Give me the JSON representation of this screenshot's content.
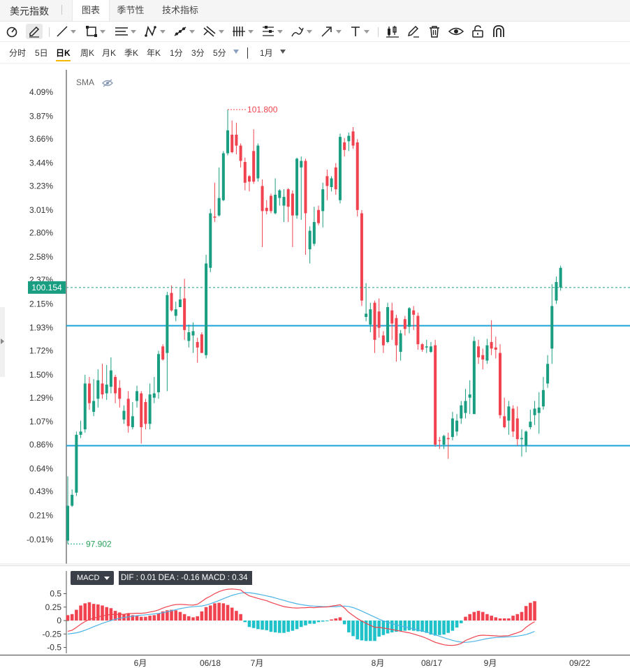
{
  "header": {
    "index_name": "美元指数",
    "tabs": [
      {
        "label": "图表",
        "active": true
      },
      {
        "label": "季节性",
        "active": false
      },
      {
        "label": "技术指标",
        "active": false
      }
    ]
  },
  "toolbar": {
    "tools": [
      "cursor-tool-icon",
      "pencil-tool-icon",
      "trend-line-icon",
      "rectangle-icon",
      "parallel-lines-icon",
      "pattern-icon",
      "channel-icon",
      "fib-icon",
      "bars-icon",
      "measure-icon",
      "brush-icon",
      "arrow-icon",
      "text-icon",
      "candle-style-icon",
      "edit-icon",
      "delete-icon",
      "eye-icon",
      "lock-icon",
      "magnet-icon"
    ]
  },
  "periods": {
    "items": [
      "分时",
      "5日",
      "日K",
      "周K",
      "月K",
      "季K",
      "年K",
      "1分",
      "3分",
      "5分"
    ],
    "active": "日K",
    "range_label": "1月"
  },
  "indicator": {
    "label": "SMA"
  },
  "price_axis": {
    "ticks": [
      "4.09%",
      "3.87%",
      "3.66%",
      "3.44%",
      "3.23%",
      "3.01%",
      "2.80%",
      "2.58%",
      "2.37%",
      "2.15%",
      "1.93%",
      "1.72%",
      "1.50%",
      "1.29%",
      "1.07%",
      "0.86%",
      "0.64%",
      "0.43%",
      "0.21%",
      "-0.01%"
    ],
    "current_price": "100.154",
    "high_label": "101.800",
    "low_label": "97.902"
  },
  "macd": {
    "label": "MACD",
    "stats": "DIF : 0.01   DEA : -0.16   MACD : 0.34",
    "y_ticks": [
      "0.5",
      "0.25",
      "0",
      "-0.25",
      "-0.5"
    ]
  },
  "time_axis": {
    "labels": [
      "6月",
      "06/18",
      "7月",
      "8月",
      "08/17",
      "9月",
      "09/22"
    ]
  },
  "colors": {
    "up": "#f0434f",
    "down": "#1a9e82",
    "support_line": "#1aa3d8",
    "price_label_bg": "#1a9e82",
    "dif": "#f0434f",
    "dea": "#4cb3e6",
    "macd_pos": "#f0434f",
    "macd_neg": "#1fc2c9"
  },
  "chart_data": {
    "type": "candlestick",
    "ylabel": "",
    "ylim_pct": [
      -0.2,
      4.2
    ],
    "horizontal_levels_pct": [
      1.95,
      0.85
    ],
    "candles": [
      [
        0.3,
        -0.02,
        0.57,
        -0.05
      ],
      [
        0.4,
        0.3,
        0.45,
        0.29
      ],
      [
        0.95,
        0.42,
        0.98,
        0.39
      ],
      [
        0.98,
        0.95,
        1.08,
        0.92
      ],
      [
        1.42,
        1.0,
        1.5,
        0.97
      ],
      [
        1.24,
        1.42,
        1.48,
        1.18
      ],
      [
        1.26,
        1.16,
        1.46,
        1.12
      ],
      [
        1.45,
        1.28,
        1.55,
        1.2
      ],
      [
        1.32,
        1.42,
        1.6,
        1.28
      ],
      [
        1.41,
        1.33,
        1.59,
        1.27
      ],
      [
        1.54,
        1.39,
        1.66,
        1.33
      ],
      [
        1.33,
        1.48,
        1.5,
        1.24
      ],
      [
        1.28,
        1.38,
        1.45,
        1.2
      ],
      [
        1.17,
        1.09,
        1.22,
        1.05
      ],
      [
        1.03,
        1.28,
        1.35,
        0.97
      ],
      [
        1.12,
        1.02,
        1.25,
        1.0
      ],
      [
        1.35,
        1.26,
        1.4,
        1.2
      ],
      [
        1.02,
        1.33,
        1.35,
        0.87
      ],
      [
        1.05,
        1.25,
        1.28,
        1.0
      ],
      [
        1.32,
        1.05,
        1.42,
        1.0
      ],
      [
        1.33,
        1.29,
        1.48,
        1.24
      ],
      [
        1.69,
        1.34,
        1.72,
        1.28
      ],
      [
        1.64,
        1.76,
        1.78,
        1.63
      ],
      [
        2.23,
        1.7,
        2.26,
        1.35
      ],
      [
        2.09,
        2.25,
        2.32,
        2.08
      ],
      [
        2.1,
        2.04,
        2.17,
        1.99
      ],
      [
        2.19,
        2.12,
        2.3,
        2.12
      ],
      [
        1.91,
        2.2,
        2.38,
        1.82
      ],
      [
        1.89,
        1.81,
        1.96,
        1.75
      ],
      [
        1.9,
        1.86,
        1.98,
        1.7
      ],
      [
        1.75,
        1.8,
        1.84,
        1.61
      ],
      [
        1.7,
        1.87,
        1.89,
        1.7
      ],
      [
        2.52,
        1.68,
        2.6,
        1.65
      ],
      [
        2.98,
        2.48,
        3.02,
        2.44
      ],
      [
        2.94,
        2.95,
        3.26,
        2.9
      ],
      [
        3.12,
        2.96,
        3.4,
        2.95
      ],
      [
        3.53,
        3.1,
        3.55,
        3.09
      ],
      [
        3.74,
        3.53,
        3.93,
        3.51
      ],
      [
        3.54,
        3.7,
        3.83,
        3.53
      ],
      [
        3.6,
        3.7,
        3.81,
        3.52
      ],
      [
        3.46,
        3.6,
        3.62,
        3.4
      ],
      [
        3.26,
        3.45,
        3.49,
        3.19
      ],
      [
        3.27,
        3.32,
        3.33,
        3.18
      ],
      [
        3.27,
        3.55,
        3.75,
        3.25
      ],
      [
        3.6,
        3.3,
        3.62,
        3.27
      ],
      [
        3.0,
        3.23,
        3.29,
        2.67
      ],
      [
        3.0,
        3.03,
        3.1,
        2.97
      ],
      [
        3.0,
        3.14,
        3.16,
        2.98
      ],
      [
        3.15,
        2.98,
        3.3,
        2.97
      ],
      [
        3.19,
        3.12,
        3.2,
        3.05
      ],
      [
        3.13,
        3.05,
        3.2,
        2.9
      ],
      [
        3.04,
        3.2,
        3.21,
        2.9
      ],
      [
        2.96,
        3.16,
        3.19,
        2.67
      ],
      [
        3.48,
        2.96,
        3.49,
        2.93
      ],
      [
        3.46,
        3.4,
        3.5,
        2.92
      ],
      [
        2.98,
        3.46,
        3.48,
        2.6
      ],
      [
        2.82,
        2.65,
        2.86,
        2.52
      ],
      [
        2.9,
        2.7,
        3.04,
        2.68
      ],
      [
        2.89,
        3.01,
        3.05,
        2.87
      ],
      [
        3.2,
        3.0,
        3.26,
        2.85
      ],
      [
        3.23,
        3.32,
        3.38,
        3.1
      ],
      [
        3.3,
        3.22,
        3.32,
        3.18
      ],
      [
        3.2,
        3.4,
        3.44,
        3.15
      ],
      [
        3.68,
        3.1,
        3.71,
        3.07
      ],
      [
        3.56,
        3.63,
        3.67,
        3.5
      ],
      [
        3.69,
        3.64,
        3.72,
        3.55
      ],
      [
        3.6,
        3.73,
        3.77,
        3.57
      ],
      [
        3.01,
        3.63,
        3.66,
        2.95
      ],
      [
        2.18,
        2.98,
        3.01,
        2.13
      ],
      [
        2.06,
        2.03,
        2.34,
        1.99
      ],
      [
        2.1,
        1.96,
        2.16,
        1.89
      ],
      [
        1.82,
        2.16,
        2.18,
        1.7
      ],
      [
        1.93,
        2.08,
        2.2,
        1.84
      ],
      [
        1.77,
        1.86,
        1.9,
        1.7
      ],
      [
        2.12,
        1.8,
        2.16,
        1.79
      ],
      [
        1.97,
        2.09,
        2.16,
        1.82
      ],
      [
        1.77,
        2.02,
        2.05,
        1.62
      ],
      [
        1.88,
        1.71,
        1.91,
        1.63
      ],
      [
        1.92,
        2.01,
        2.04,
        1.86
      ],
      [
        2.11,
        1.94,
        2.12,
        1.88
      ],
      [
        2.05,
        2.09,
        2.13,
        1.91
      ],
      [
        1.78,
        2.04,
        2.07,
        1.73
      ],
      [
        1.73,
        1.78,
        1.79,
        1.71
      ],
      [
        1.76,
        1.75,
        1.82,
        1.7
      ],
      [
        1.76,
        1.71,
        1.8,
        1.7
      ],
      [
        0.86,
        1.77,
        1.82,
        0.84
      ],
      [
        0.9,
        0.9,
        0.93,
        0.82
      ],
      [
        0.94,
        0.86,
        0.95,
        0.82
      ],
      [
        0.91,
        0.92,
        0.97,
        0.73
      ],
      [
        1.1,
        0.93,
        1.16,
        0.9
      ],
      [
        1.08,
        0.98,
        1.14,
        0.94
      ],
      [
        1.22,
        1.1,
        1.26,
        1.05
      ],
      [
        1.26,
        1.15,
        1.37,
        1.1
      ],
      [
        1.32,
        1.29,
        1.45,
        1.14
      ],
      [
        1.81,
        1.14,
        1.85,
        1.14
      ],
      [
        1.66,
        1.76,
        1.82,
        1.6
      ],
      [
        1.64,
        1.68,
        1.74,
        1.55
      ],
      [
        1.77,
        1.63,
        1.83,
        1.6
      ],
      [
        1.74,
        1.8,
        2.0,
        1.68
      ],
      [
        1.73,
        1.75,
        1.85,
        1.65
      ],
      [
        1.13,
        1.7,
        1.78,
        1.1
      ],
      [
        1.02,
        1.12,
        1.29,
        1.01
      ],
      [
        1.21,
        1.08,
        1.26,
        0.95
      ],
      [
        0.98,
        1.19,
        1.22,
        0.93
      ],
      [
        0.91,
        1.1,
        1.21,
        0.85
      ],
      [
        0.92,
        0.91,
        1.0,
        0.75
      ],
      [
        0.98,
        0.85,
        0.99,
        0.79
      ],
      [
        1.07,
        1.02,
        1.18,
        1.0
      ],
      [
        1.19,
        1.13,
        1.26,
        1.04
      ],
      [
        1.2,
        1.15,
        1.34,
        0.96
      ],
      [
        1.36,
        1.21,
        1.48,
        1.18
      ],
      [
        1.6,
        1.42,
        1.68,
        1.38
      ],
      [
        2.13,
        1.74,
        2.33,
        1.6
      ],
      [
        2.35,
        2.18,
        2.4,
        2.15
      ],
      [
        2.48,
        2.3,
        2.5,
        2.27
      ]
    ],
    "macd_bars": [
      0.1,
      0.12,
      0.2,
      0.28,
      0.32,
      0.34,
      0.31,
      0.3,
      0.28,
      0.25,
      0.23,
      0.18,
      0.15,
      0.12,
      0.13,
      0.1,
      0.09,
      0.07,
      0.07,
      0.09,
      0.1,
      0.13,
      0.17,
      0.19,
      0.2,
      0.19,
      0.16,
      0.12,
      0.08,
      0.06,
      0.08,
      0.17,
      0.25,
      0.28,
      0.32,
      0.33,
      0.32,
      0.29,
      0.24,
      0.18,
      0.12,
      -0.03,
      -0.12,
      -0.14,
      -0.16,
      -0.17,
      -0.18,
      -0.21,
      -0.22,
      -0.23,
      -0.23,
      -0.21,
      -0.19,
      -0.16,
      -0.12,
      -0.09,
      -0.06,
      -0.06,
      -0.03,
      -0.02,
      -0.01,
      0.02,
      0.04,
      0.06,
      -0.07,
      -0.22,
      -0.29,
      -0.35,
      -0.37,
      -0.38,
      -0.38,
      -0.38,
      -0.3,
      -0.27,
      -0.24,
      -0.22,
      -0.21,
      -0.2,
      -0.19,
      -0.18,
      -0.19,
      -0.2,
      -0.21,
      -0.23,
      -0.26,
      -0.28,
      -0.27,
      -0.26,
      -0.23,
      -0.19,
      -0.13,
      -0.05,
      0.07,
      0.12,
      0.16,
      0.18,
      0.16,
      0.12,
      0.09,
      0.06,
      0.04,
      0.04,
      0.04,
      0.09,
      0.12,
      0.16,
      0.27,
      0.33,
      0.36
    ]
  }
}
